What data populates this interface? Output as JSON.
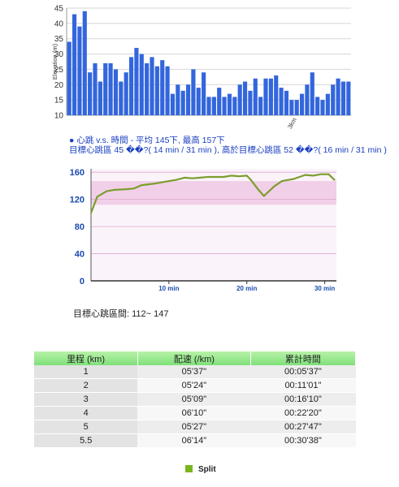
{
  "chart_data": [
    {
      "type": "bar",
      "ylabel": "Elevation (m)",
      "xlabel": "",
      "ylim": [
        10,
        45
      ],
      "yticks": [
        10,
        15,
        20,
        25,
        30,
        35,
        40,
        45
      ],
      "x_tick_labels": [
        {
          "label": "3km",
          "index": 44
        }
      ],
      "color": "#3366dd",
      "grid": true,
      "values": [
        34,
        43,
        39,
        44,
        24,
        27,
        21,
        27,
        27,
        25,
        21,
        24,
        29,
        32,
        30,
        27,
        29,
        26,
        28,
        26,
        17,
        20,
        18,
        20,
        25,
        19,
        24,
        16,
        16,
        19,
        16,
        17,
        16,
        20,
        21,
        18,
        22,
        16,
        22,
        22,
        23,
        19,
        18,
        15,
        15,
        17,
        20,
        24,
        16,
        15,
        17,
        20,
        22,
        21,
        21
      ]
    },
    {
      "type": "line",
      "title_lines": [
        "● 心跳 v.s. 時間 - 平均 145下, 最高 157下",
        "目標心跳區 45 ��?( 14 min / 31 min ), 高於目標心跳區 52 ��?( 16 min / 31 min )"
      ],
      "xlim": [
        0,
        31.5
      ],
      "ylim": [
        0,
        165
      ],
      "yticks": [
        0,
        40,
        80,
        120,
        160
      ],
      "xticks": [
        {
          "v": 10,
          "label": "10 min"
        },
        {
          "v": 20,
          "label": "20 min"
        },
        {
          "v": 30,
          "label": "30 min"
        }
      ],
      "target_zone": [
        112,
        147
      ],
      "line_color": "#7a9e2c",
      "zone_color": "#f2cfe8",
      "series": [
        {
          "x": [
            0,
            0.8,
            2,
            3,
            4.5,
            5.5,
            6.5,
            8,
            9.5,
            11,
            12,
            13,
            14,
            15,
            16,
            17,
            18,
            19,
            20,
            20.5,
            21.5,
            22.2,
            23.5,
            24.5,
            26,
            27.5,
            28.5,
            29.5,
            30.5,
            31.3
          ],
          "y": [
            100,
            124,
            132,
            134,
            135,
            136,
            141,
            143,
            146,
            149,
            152,
            151,
            152,
            153,
            153,
            153,
            155,
            154,
            155,
            149,
            134,
            125,
            139,
            147,
            150,
            156,
            155,
            157,
            157,
            148
          ]
        }
      ]
    }
  ],
  "target_zone_text": {
    "label": "目標心跳區間: ",
    "range": "112~ 147"
  },
  "splits": {
    "headers": [
      "里程 (km)",
      "配速 (/km)",
      "累計時間"
    ],
    "rows": [
      [
        "1",
        "05'37\"",
        "00:05'37\""
      ],
      [
        "2",
        "05'24\"",
        "00:11'01\""
      ],
      [
        "3",
        "05'09\"",
        "00:16'10\""
      ],
      [
        "4",
        "06'10\"",
        "00:22'20\""
      ],
      [
        "5",
        "05'27\"",
        "00:27'47\""
      ],
      [
        "5.5",
        "06'14\"",
        "00:30'38\""
      ]
    ]
  },
  "legend": {
    "label": "Split",
    "color": "#7ab51d"
  }
}
